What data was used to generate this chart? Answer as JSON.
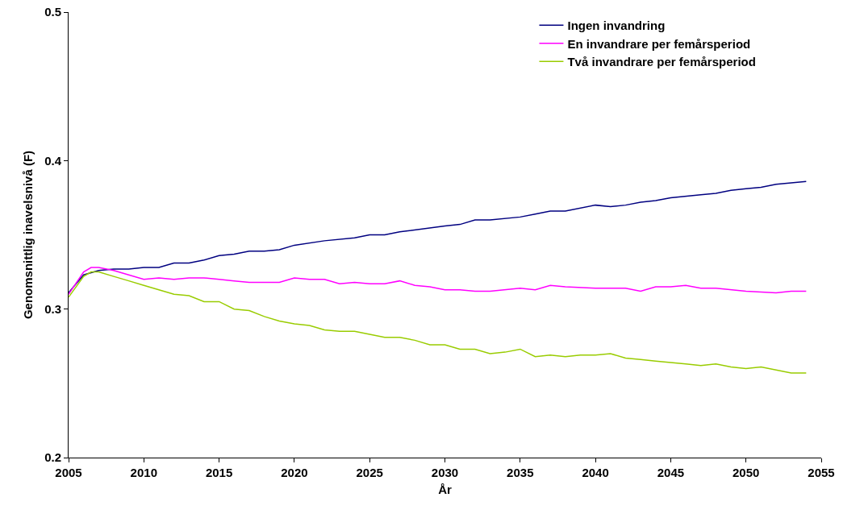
{
  "chart_data": {
    "type": "line",
    "xlabel": "År",
    "ylabel": "Genomsnittlig inavelsnivå (F)",
    "xlim": [
      2005,
      2055
    ],
    "xticks": [
      2005,
      2010,
      2015,
      2020,
      2025,
      2030,
      2035,
      2040,
      2045,
      2050,
      2055
    ],
    "ylim": [
      0.2,
      0.5
    ],
    "yticks": [
      0.2,
      0.3,
      0.4,
      0.5
    ],
    "grid": false,
    "legend": "top right",
    "marker": "none",
    "line_style": "solid",
    "series": [
      {
        "name": "Ingen invandring",
        "color": "#000080",
        "x": [
          2005,
          2006,
          2007,
          2008,
          2009,
          2010,
          2011,
          2012,
          2013,
          2014,
          2015,
          2016,
          2017,
          2018,
          2019,
          2020,
          2022,
          2024,
          2025,
          2026,
          2027,
          2030,
          2031,
          2032,
          2033,
          2035,
          2036,
          2037,
          2038,
          2040,
          2041,
          2042,
          2043,
          2044,
          2045,
          2047,
          2048,
          2049,
          2050,
          2051,
          2052,
          2054
        ],
        "values": [
          0.311,
          0.323,
          0.326,
          0.327,
          0.327,
          0.328,
          0.328,
          0.331,
          0.331,
          0.333,
          0.336,
          0.337,
          0.339,
          0.339,
          0.34,
          0.343,
          0.346,
          0.348,
          0.35,
          0.35,
          0.352,
          0.356,
          0.357,
          0.36,
          0.36,
          0.362,
          0.364,
          0.366,
          0.366,
          0.37,
          0.369,
          0.37,
          0.372,
          0.373,
          0.375,
          0.377,
          0.378,
          0.38,
          0.381,
          0.382,
          0.384,
          0.386
        ]
      },
      {
        "name": "En invandrare per femårsperiod",
        "color": "#ff00ff",
        "x": [
          2005,
          2006,
          2006.5,
          2007,
          2008,
          2009,
          2010,
          2011,
          2012,
          2013,
          2014,
          2015,
          2016,
          2017,
          2018,
          2019,
          2020,
          2021,
          2022,
          2023,
          2024,
          2025,
          2026,
          2027,
          2028,
          2029,
          2030,
          2031,
          2032,
          2033,
          2035,
          2036,
          2037,
          2038,
          2040,
          2042,
          2043,
          2044,
          2045,
          2046,
          2047,
          2048,
          2050,
          2052,
          2053,
          2054
        ],
        "values": [
          0.31,
          0.325,
          0.328,
          0.328,
          0.326,
          0.323,
          0.32,
          0.321,
          0.32,
          0.321,
          0.321,
          0.32,
          0.319,
          0.318,
          0.318,
          0.318,
          0.321,
          0.32,
          0.32,
          0.317,
          0.318,
          0.317,
          0.317,
          0.319,
          0.316,
          0.315,
          0.313,
          0.313,
          0.312,
          0.312,
          0.314,
          0.313,
          0.316,
          0.315,
          0.314,
          0.314,
          0.312,
          0.315,
          0.315,
          0.316,
          0.314,
          0.314,
          0.312,
          0.311,
          0.312,
          0.312
        ]
      },
      {
        "name": "Två invandrare per femårsperiod",
        "color": "#99cc00",
        "x": [
          2005,
          2006,
          2006.5,
          2007,
          2008,
          2009,
          2010,
          2011,
          2012,
          2013,
          2014,
          2015,
          2016,
          2017,
          2018,
          2019,
          2020,
          2021,
          2022,
          2023,
          2024,
          2025,
          2026,
          2027,
          2028,
          2029,
          2030,
          2031,
          2032,
          2033,
          2034,
          2035,
          2036,
          2037,
          2038,
          2039,
          2040,
          2041,
          2042,
          2043,
          2044,
          2045,
          2046,
          2047,
          2048,
          2049,
          2050,
          2051,
          2052,
          2053,
          2054
        ],
        "values": [
          0.308,
          0.322,
          0.325,
          0.325,
          0.322,
          0.319,
          0.316,
          0.313,
          0.31,
          0.309,
          0.305,
          0.305,
          0.3,
          0.299,
          0.295,
          0.292,
          0.29,
          0.289,
          0.286,
          0.285,
          0.285,
          0.283,
          0.281,
          0.281,
          0.279,
          0.276,
          0.276,
          0.273,
          0.273,
          0.27,
          0.271,
          0.273,
          0.268,
          0.269,
          0.268,
          0.269,
          0.269,
          0.27,
          0.267,
          0.266,
          0.265,
          0.264,
          0.263,
          0.262,
          0.263,
          0.261,
          0.26,
          0.261,
          0.259,
          0.257,
          0.257
        ]
      }
    ]
  }
}
